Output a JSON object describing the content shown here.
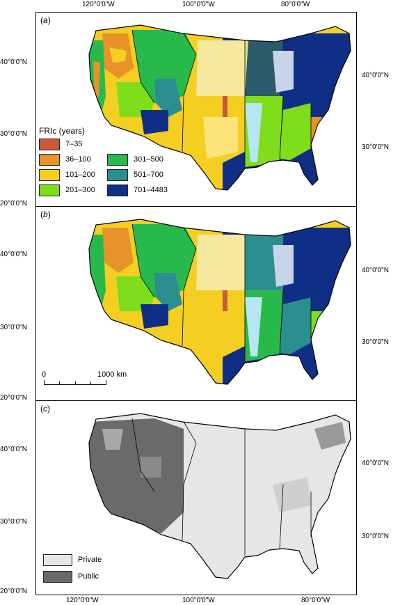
{
  "axes": {
    "top_ticks": [
      "120°0'0\"W",
      "100°0'0\"W",
      "80°0'0\"W"
    ],
    "bottom_ticks": [
      "120°0'0\"W",
      "100°0'0\"W",
      "80°0'0\"W"
    ],
    "left_ticks": [
      "40°0'0\"N",
      "30°0'0\"N",
      "20°0'0\"N",
      "40°0'0\"N",
      "30°0'0\"N",
      "20°0'0\"N",
      "40°0'0\"N",
      "30°0'0\"N",
      "20°0'0\"N"
    ],
    "right_ticks": [
      "40°0'0\"N",
      "30°0'0\"N",
      "40°0'0\"N",
      "30°0'0\"N",
      "40°0'0\"N",
      "30°0'0\"N"
    ]
  },
  "panels": [
    {
      "label": "a"
    },
    {
      "label": "b"
    },
    {
      "label": "c"
    }
  ],
  "legend_fri": {
    "title": "FRIc (years)",
    "items": [
      {
        "label": "7–35",
        "color": "#c9573a"
      },
      {
        "label": "36–100",
        "color": "#e8922a"
      },
      {
        "label": "101–200",
        "color": "#f4cf22"
      },
      {
        "label": "201–300",
        "color": "#7fde1c"
      },
      {
        "label": "301–500",
        "color": "#27b94a"
      },
      {
        "label": "501–700",
        "color": "#2b8f8f"
      },
      {
        "label": "701–4483",
        "color": "#0f2f86"
      }
    ]
  },
  "scalebar": {
    "start": "0",
    "end": "1000 km"
  },
  "legend_land": {
    "items": [
      {
        "label": "Private",
        "color": "#e6e6e6"
      },
      {
        "label": "Public",
        "color": "#6a6a6a"
      }
    ]
  }
}
